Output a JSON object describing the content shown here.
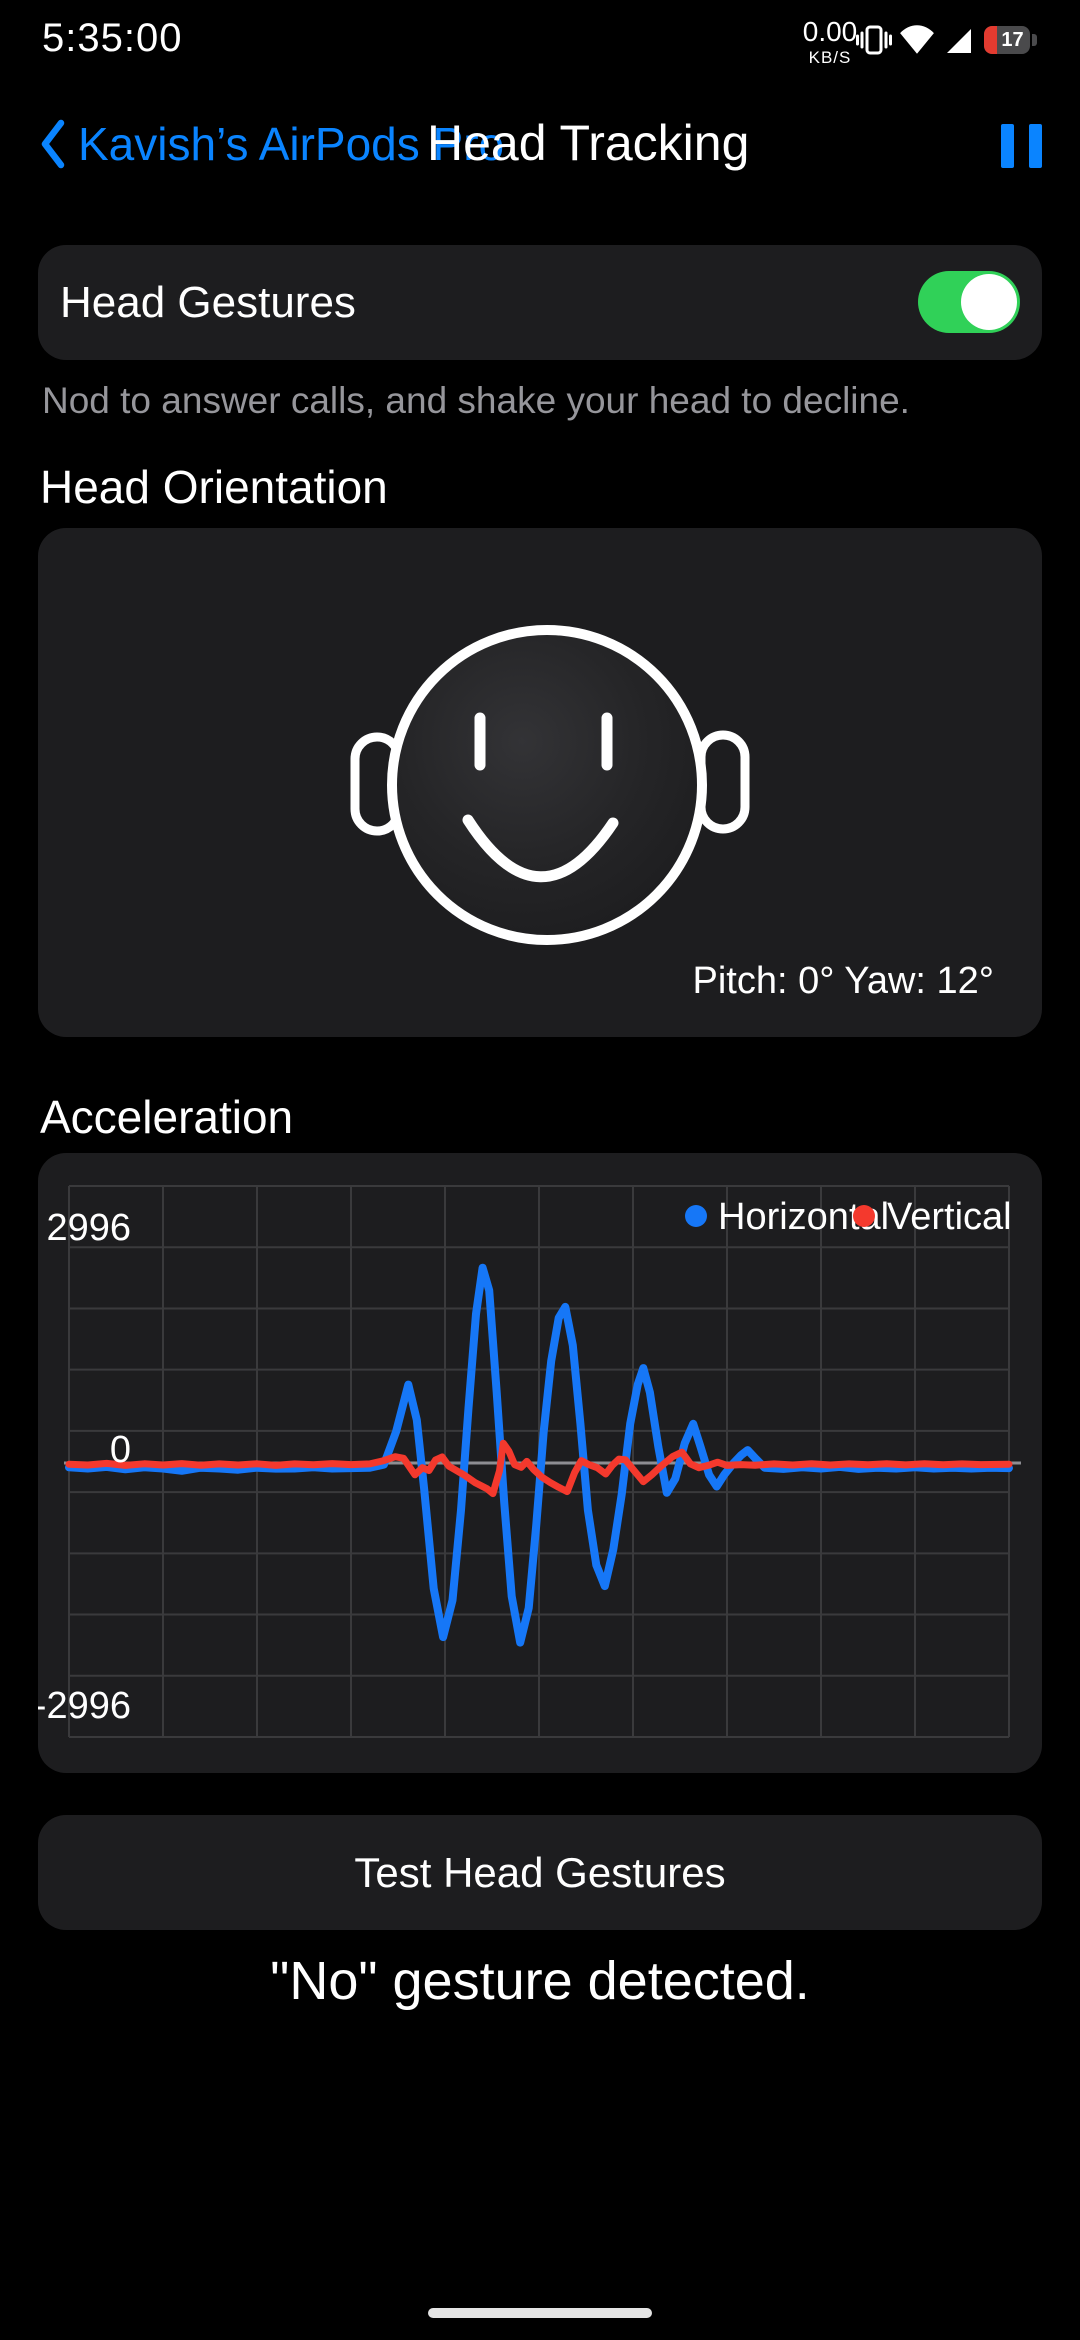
{
  "status_bar": {
    "time": "5:35:00",
    "net_speed": "0.00",
    "net_unit": "KB/S",
    "battery_percent": "17",
    "icons": [
      "vibrate-icon",
      "wifi-icon",
      "cellular-signal-icon",
      "battery-icon"
    ]
  },
  "header": {
    "back_label": "Kavish’s AirPods Pro",
    "title": "Head Tracking",
    "pause_icon": "pause-icon"
  },
  "head_gestures": {
    "label": "Head Gestures",
    "toggle_on": true,
    "caption": "Nod to answer calls, and shake your head to decline."
  },
  "head_orientation": {
    "section_title": "Head Orientation",
    "pitch_yaw": "Pitch: 0° Yaw: 12°",
    "face_icon": "smiley-face-with-earbuds"
  },
  "acceleration": {
    "section_title": "Acceleration"
  },
  "actions": {
    "test_button_label": "Test Head Gestures",
    "result_text": "\"No\" gesture detected."
  },
  "colors": {
    "background": "#000000",
    "card": "#1d1d1f",
    "accent_blue": "#0a84ff",
    "toggle_green": "#30d158",
    "chart_blue": "#1677f7",
    "chart_red": "#f4392d",
    "battery_red": "#e33b30",
    "caption_gray": "#96969b"
  },
  "chart_data": {
    "type": "line",
    "title": "Acceleration",
    "ylabels": [
      "2996",
      "0",
      "-2996"
    ],
    "yticks": [
      2996,
      0,
      -2996
    ],
    "ylim": [
      -3450,
      3520
    ],
    "legend_position": "top-right",
    "grid": {
      "v_lines": 11,
      "h_lines": 10,
      "color": "#3a3a3c",
      "zero_line_color": "#8e8e93"
    },
    "series": [
      {
        "name": "Horizontal",
        "color": "#1677f7",
        "width": 8,
        "points": [
          [
            0.0,
            -55
          ],
          [
            0.02,
            -70
          ],
          [
            0.04,
            -50
          ],
          [
            0.06,
            -80
          ],
          [
            0.08,
            -55
          ],
          [
            0.1,
            -70
          ],
          [
            0.12,
            -100
          ],
          [
            0.14,
            -60
          ],
          [
            0.16,
            -70
          ],
          [
            0.18,
            -85
          ],
          [
            0.2,
            -60
          ],
          [
            0.22,
            -72
          ],
          [
            0.24,
            -70
          ],
          [
            0.26,
            -55
          ],
          [
            0.28,
            -70
          ],
          [
            0.3,
            -65
          ],
          [
            0.32,
            -60
          ],
          [
            0.335,
            -20
          ],
          [
            0.348,
            400
          ],
          [
            0.361,
            1000
          ],
          [
            0.37,
            550
          ],
          [
            0.378,
            -350
          ],
          [
            0.388,
            -1600
          ],
          [
            0.398,
            -2220
          ],
          [
            0.408,
            -1750
          ],
          [
            0.417,
            -600
          ],
          [
            0.425,
            700
          ],
          [
            0.433,
            1900
          ],
          [
            0.44,
            2490
          ],
          [
            0.447,
            2200
          ],
          [
            0.455,
            900
          ],
          [
            0.463,
            -500
          ],
          [
            0.471,
            -1700
          ],
          [
            0.48,
            -2290
          ],
          [
            0.489,
            -1850
          ],
          [
            0.497,
            -800
          ],
          [
            0.505,
            400
          ],
          [
            0.513,
            1300
          ],
          [
            0.521,
            1850
          ],
          [
            0.528,
            1990
          ],
          [
            0.536,
            1500
          ],
          [
            0.544,
            500
          ],
          [
            0.552,
            -600
          ],
          [
            0.561,
            -1300
          ],
          [
            0.57,
            -1570
          ],
          [
            0.579,
            -1100
          ],
          [
            0.588,
            -400
          ],
          [
            0.597,
            500
          ],
          [
            0.605,
            1000
          ],
          [
            0.611,
            1210
          ],
          [
            0.618,
            900
          ],
          [
            0.627,
            200
          ],
          [
            0.636,
            -380
          ],
          [
            0.645,
            -200
          ],
          [
            0.655,
            250
          ],
          [
            0.664,
            500
          ],
          [
            0.672,
            200
          ],
          [
            0.681,
            -150
          ],
          [
            0.689,
            -300
          ],
          [
            0.697,
            -150
          ],
          [
            0.707,
            0
          ],
          [
            0.715,
            100
          ],
          [
            0.722,
            165
          ],
          [
            0.731,
            50
          ],
          [
            0.74,
            -60
          ],
          [
            0.76,
            -75
          ],
          [
            0.78,
            -55
          ],
          [
            0.8,
            -70
          ],
          [
            0.82,
            -50
          ],
          [
            0.84,
            -75
          ],
          [
            0.86,
            -60
          ],
          [
            0.88,
            -70
          ],
          [
            0.9,
            -55
          ],
          [
            0.92,
            -70
          ],
          [
            0.94,
            -60
          ],
          [
            0.96,
            -70
          ],
          [
            0.98,
            -60
          ],
          [
            1.0,
            -65
          ]
        ]
      },
      {
        "name": "Vertical",
        "color": "#f4392d",
        "width": 7,
        "points": [
          [
            0.0,
            -15
          ],
          [
            0.02,
            -25
          ],
          [
            0.04,
            -5
          ],
          [
            0.06,
            -30
          ],
          [
            0.08,
            -10
          ],
          [
            0.1,
            -25
          ],
          [
            0.12,
            -8
          ],
          [
            0.14,
            -28
          ],
          [
            0.16,
            -12
          ],
          [
            0.18,
            -25
          ],
          [
            0.2,
            -10
          ],
          [
            0.22,
            -30
          ],
          [
            0.24,
            -12
          ],
          [
            0.26,
            -22
          ],
          [
            0.28,
            -8
          ],
          [
            0.3,
            -20
          ],
          [
            0.32,
            -12
          ],
          [
            0.335,
            30
          ],
          [
            0.347,
            80
          ],
          [
            0.356,
            60
          ],
          [
            0.368,
            -151
          ],
          [
            0.376,
            -60
          ],
          [
            0.383,
            -95
          ],
          [
            0.39,
            40
          ],
          [
            0.397,
            76
          ],
          [
            0.404,
            -40
          ],
          [
            0.411,
            -88
          ],
          [
            0.42,
            -150
          ],
          [
            0.432,
            -250
          ],
          [
            0.445,
            -330
          ],
          [
            0.451,
            -390
          ],
          [
            0.458,
            -100
          ],
          [
            0.462,
            252
          ],
          [
            0.468,
            150
          ],
          [
            0.474,
            -20
          ],
          [
            0.481,
            -55
          ],
          [
            0.487,
            20
          ],
          [
            0.494,
            -80
          ],
          [
            0.503,
            -180
          ],
          [
            0.512,
            -250
          ],
          [
            0.521,
            -310
          ],
          [
            0.53,
            -365
          ],
          [
            0.538,
            -120
          ],
          [
            0.545,
            30
          ],
          [
            0.553,
            -20
          ],
          [
            0.562,
            -60
          ],
          [
            0.571,
            -140
          ],
          [
            0.578,
            -30
          ],
          [
            0.585,
            50
          ],
          [
            0.592,
            40
          ],
          [
            0.6,
            -80
          ],
          [
            0.611,
            -239
          ],
          [
            0.62,
            -150
          ],
          [
            0.63,
            -40
          ],
          [
            0.642,
            80
          ],
          [
            0.652,
            139
          ],
          [
            0.661,
            -10
          ],
          [
            0.67,
            -60
          ],
          [
            0.68,
            -30
          ],
          [
            0.69,
            10
          ],
          [
            0.7,
            -30
          ],
          [
            0.715,
            -20
          ],
          [
            0.73,
            -28
          ],
          [
            0.75,
            -12
          ],
          [
            0.77,
            -25
          ],
          [
            0.79,
            -10
          ],
          [
            0.81,
            -25
          ],
          [
            0.83,
            -12
          ],
          [
            0.85,
            -22
          ],
          [
            0.87,
            -10
          ],
          [
            0.89,
            -24
          ],
          [
            0.91,
            -10
          ],
          [
            0.93,
            -22
          ],
          [
            0.95,
            -12
          ],
          [
            0.97,
            -20
          ],
          [
            1.0,
            -15
          ]
        ]
      }
    ]
  }
}
